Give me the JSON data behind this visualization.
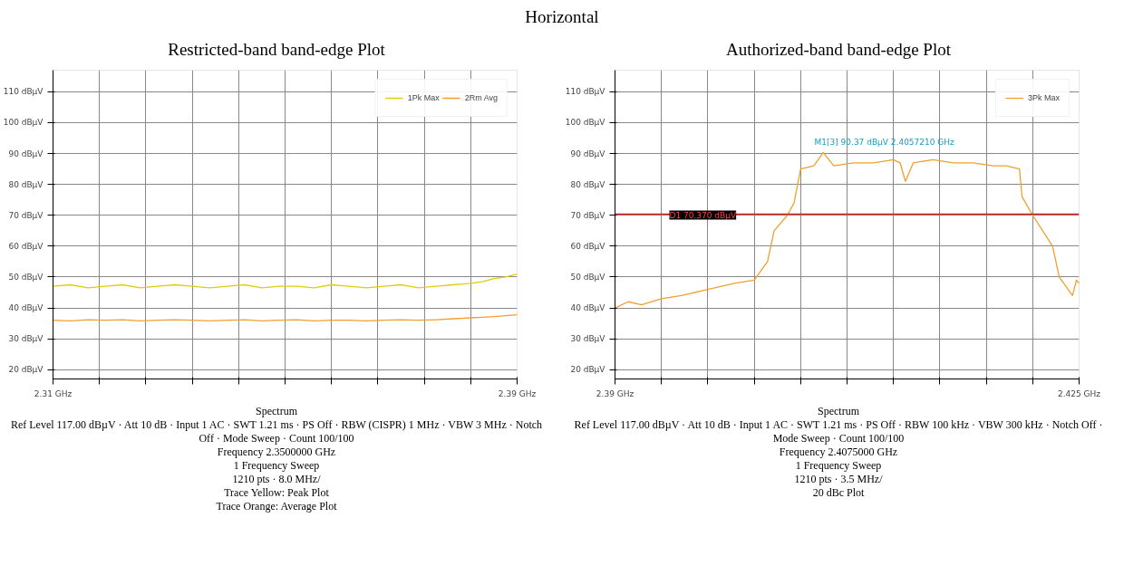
{
  "chart_data": [
    {
      "type": "line",
      "title": "Restricted-band band-edge Plot",
      "subtitle": "Horizontal",
      "ylabel": null,
      "x": [
        2.31,
        2.313,
        2.316,
        2.319,
        2.322,
        2.325,
        2.328,
        2.331,
        2.334,
        2.337,
        2.34,
        2.343,
        2.346,
        2.349,
        2.352,
        2.355,
        2.358,
        2.361,
        2.364,
        2.367,
        2.37,
        2.373,
        2.376,
        2.379,
        2.382,
        2.384,
        2.386,
        2.388,
        2.39
      ],
      "series": [
        {
          "name": "1Pk Max",
          "color": "#e0cc10",
          "values": [
            47,
            47.5,
            46.5,
            47,
            47.5,
            46.5,
            47,
            47.5,
            47,
            46.5,
            47,
            47.5,
            46.5,
            47,
            47,
            46.5,
            47.5,
            47,
            46.5,
            47,
            47.5,
            46.5,
            47,
            47.5,
            48,
            48.5,
            49.5,
            50,
            51
          ]
        },
        {
          "name": "2Rm Avg",
          "color": "#f0a030",
          "values": [
            36,
            35.8,
            36.2,
            36,
            36.2,
            35.8,
            36,
            36.2,
            36,
            35.8,
            36,
            36.2,
            35.8,
            36,
            36.2,
            35.8,
            36,
            36,
            35.8,
            36,
            36.2,
            36,
            36.2,
            36.5,
            36.8,
            37,
            37.2,
            37.5,
            37.8
          ]
        }
      ],
      "xlim": [
        2.31,
        2.39
      ],
      "ylim": [
        17,
        117
      ],
      "xticks": [
        {
          "value": 2.31,
          "label": "2.31 GHz"
        },
        {
          "value": 2.318,
          "label": null
        },
        {
          "value": 2.326,
          "label": null
        },
        {
          "value": 2.334,
          "label": null
        },
        {
          "value": 2.342,
          "label": null
        },
        {
          "value": 2.35,
          "label": null
        },
        {
          "value": 2.358,
          "label": null
        },
        {
          "value": 2.366,
          "label": null
        },
        {
          "value": 2.374,
          "label": null
        },
        {
          "value": 2.382,
          "label": null
        },
        {
          "value": 2.39,
          "label": "2.39 GHz"
        }
      ],
      "yticks": [
        {
          "value": 20,
          "label": "20 dBµV"
        },
        {
          "value": 30,
          "label": "30 dBµV"
        },
        {
          "value": 40,
          "label": "40 dBµV"
        },
        {
          "value": 50,
          "label": "50 dBµV"
        },
        {
          "value": 60,
          "label": "60 dBµV"
        },
        {
          "value": 70,
          "label": "70 dBµV"
        },
        {
          "value": 80,
          "label": "80 dBµV"
        },
        {
          "value": 90,
          "label": "90 dBµV"
        },
        {
          "value": 100,
          "label": "100 dBµV"
        },
        {
          "value": 110,
          "label": "110 dBµV"
        }
      ],
      "grid": true,
      "legend": "top right",
      "annotations": [
        "Spectrum",
        "Ref Level 117.00 dBµV · Att 10 dB · Input 1 AC · SWT 1.21 ms · PS Off · RBW (CISPR) 1 MHz · VBW 3 MHz · Notch Off · Mode Sweep · Count 100/100",
        "Frequency 2.3500000 GHz",
        "1 Frequency Sweep",
        "1210 pts · 8.0 MHz/",
        "Trace Yellow: Peak Plot",
        "Trace Orange: Average Plot"
      ]
    },
    {
      "type": "line",
      "title": "Authorized-band band-edge Plot",
      "x": [
        2.39,
        2.391,
        2.392,
        2.3935,
        2.395,
        2.397,
        2.399,
        2.4005,
        2.4015,
        2.402,
        2.403,
        2.4035,
        2.404,
        2.405,
        2.4057,
        2.4065,
        2.408,
        2.4095,
        2.411,
        2.4115,
        2.4119,
        2.4125,
        2.414,
        2.4155,
        2.417,
        2.4185,
        2.4195,
        2.4205,
        2.4207,
        2.4215,
        2.423,
        2.4235,
        2.424,
        2.4245,
        2.4248,
        2.425
      ],
      "series": [
        {
          "name": "3Pk Max",
          "color": "#f0a030",
          "values": [
            40,
            42,
            41,
            43,
            44,
            46,
            48,
            49,
            55,
            65,
            70,
            74,
            85,
            86,
            90.37,
            86,
            87,
            87,
            88,
            87,
            81,
            87,
            88,
            87,
            87,
            86,
            86,
            85,
            76,
            70,
            60,
            50,
            47,
            44,
            49,
            48
          ]
        }
      ],
      "xlim": [
        2.39,
        2.425
      ],
      "ylim": [
        17,
        117
      ],
      "xticks": [
        {
          "value": 2.39,
          "label": "2.39 GHz"
        },
        {
          "value": 2.3935,
          "label": null
        },
        {
          "value": 2.397,
          "label": null
        },
        {
          "value": 2.4005,
          "label": null
        },
        {
          "value": 2.404,
          "label": null
        },
        {
          "value": 2.4075,
          "label": null
        },
        {
          "value": 2.411,
          "label": null
        },
        {
          "value": 2.4145,
          "label": null
        },
        {
          "value": 2.418,
          "label": null
        },
        {
          "value": 2.4215,
          "label": null
        },
        {
          "value": 2.425,
          "label": "2.425 GHz"
        }
      ],
      "yticks": [
        {
          "value": 20,
          "label": "20 dBµV"
        },
        {
          "value": 30,
          "label": "30 dBµV"
        },
        {
          "value": 40,
          "label": "40 dBµV"
        },
        {
          "value": 50,
          "label": "50 dBµV"
        },
        {
          "value": 60,
          "label": "60 dBµV"
        },
        {
          "value": 70,
          "label": "70 dBµV"
        },
        {
          "value": 80,
          "label": "80 dBµV"
        },
        {
          "value": 90,
          "label": "90 dBµV"
        },
        {
          "value": 100,
          "label": "100 dBµV"
        },
        {
          "value": 110,
          "label": "110 dBµV"
        }
      ],
      "grid": true,
      "legend": "top right",
      "ref_lines": [
        {
          "axis": "y",
          "value": 70.37,
          "label": "D1 70.370 dBµV",
          "color": "#d02020"
        }
      ],
      "annotations": [
        {
          "text": "M1[3] 90.37 dBµV 2.4057210 GHz",
          "x": 2.405721,
          "y": 90.37
        },
        "Spectrum",
        "Ref Level 117.00 dBµV · Att 10 dB · Input 1 AC · SWT 1.21 ms · PS Off · RBW 100 kHz · VBW 300 kHz · Notch Off · Mode Sweep · Count 100/100",
        "Frequency 2.4075000 GHz",
        "1 Frequency Sweep",
        "1210 pts · 3.5 MHz/",
        "20 dBc Plot"
      ]
    }
  ]
}
